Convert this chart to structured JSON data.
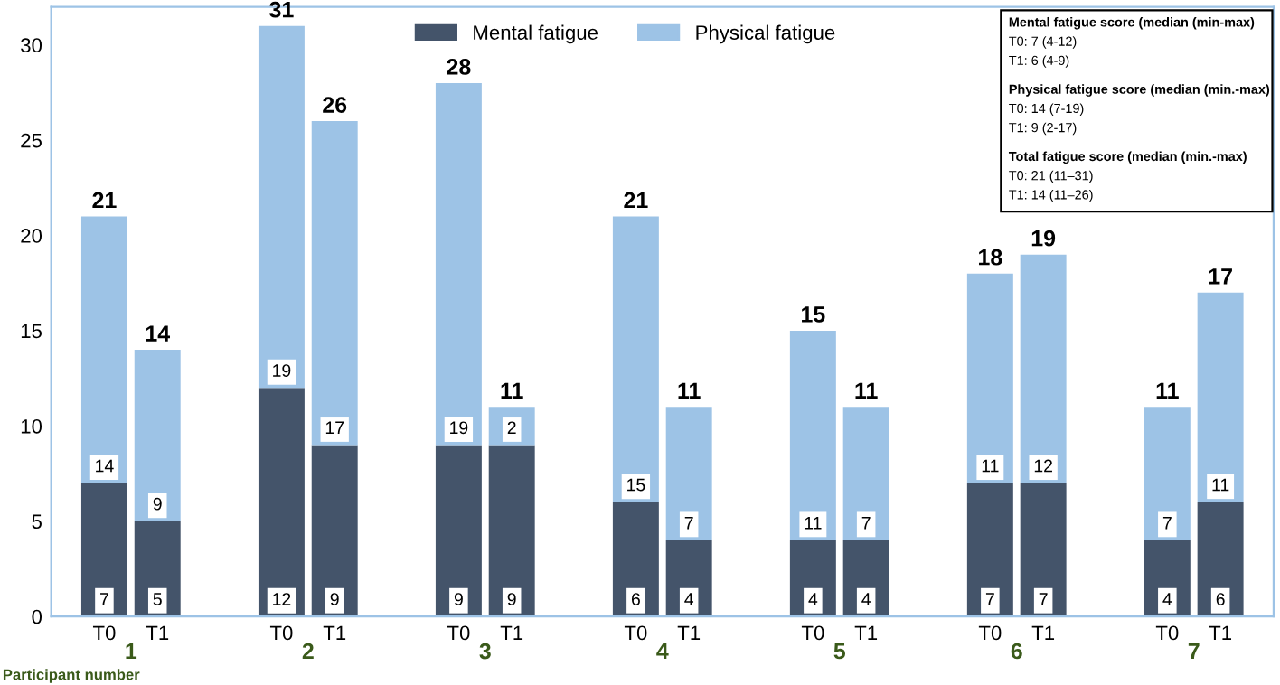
{
  "chart_data": {
    "type": "bar",
    "stacked": true,
    "xlabel": "Participant number",
    "categories": [
      "T0",
      "T1",
      "T0",
      "T1",
      "T0",
      "T1",
      "T0",
      "T1",
      "T0",
      "T1",
      "T0",
      "T1",
      "T0",
      "T1"
    ],
    "series": [
      {
        "name": "Mental fatigue",
        "color": "#44546a",
        "values": [
          7,
          5,
          12,
          9,
          9,
          9,
          6,
          4,
          4,
          4,
          7,
          7,
          4,
          6
        ]
      },
      {
        "name": "Physical fatigue",
        "color": "#9dc3e6",
        "values": [
          14,
          9,
          19,
          17,
          19,
          2,
          15,
          7,
          11,
          7,
          11,
          12,
          7,
          11
        ]
      }
    ],
    "data_labels": true,
    "totals": [
      "21",
      "14",
      "31",
      "26",
      "28",
      "11",
      "21",
      "11",
      "15",
      "11",
      "18",
      "19",
      "11",
      "17"
    ],
    "ylim": [
      0,
      32
    ],
    "yticks": [
      0,
      5,
      10,
      15,
      20,
      25,
      30
    ],
    "grid": false,
    "legend": "top",
    "annotations": [
      "1",
      "2",
      "3",
      "4",
      "5",
      "6",
      "7",
      "Mental fatigue score (median (min-max)",
      "T0: 7 (4-12)",
      "T1: 6 (4-9)",
      "Physical fatigue score (median (min.-max)",
      "T0: 14 (7-19)",
      "T1: 9 (2-17)",
      "Total fatigue score (median (min.-max)",
      "T0: 21 (11–31)",
      "T1: 14 (11–26)"
    ]
  }
}
